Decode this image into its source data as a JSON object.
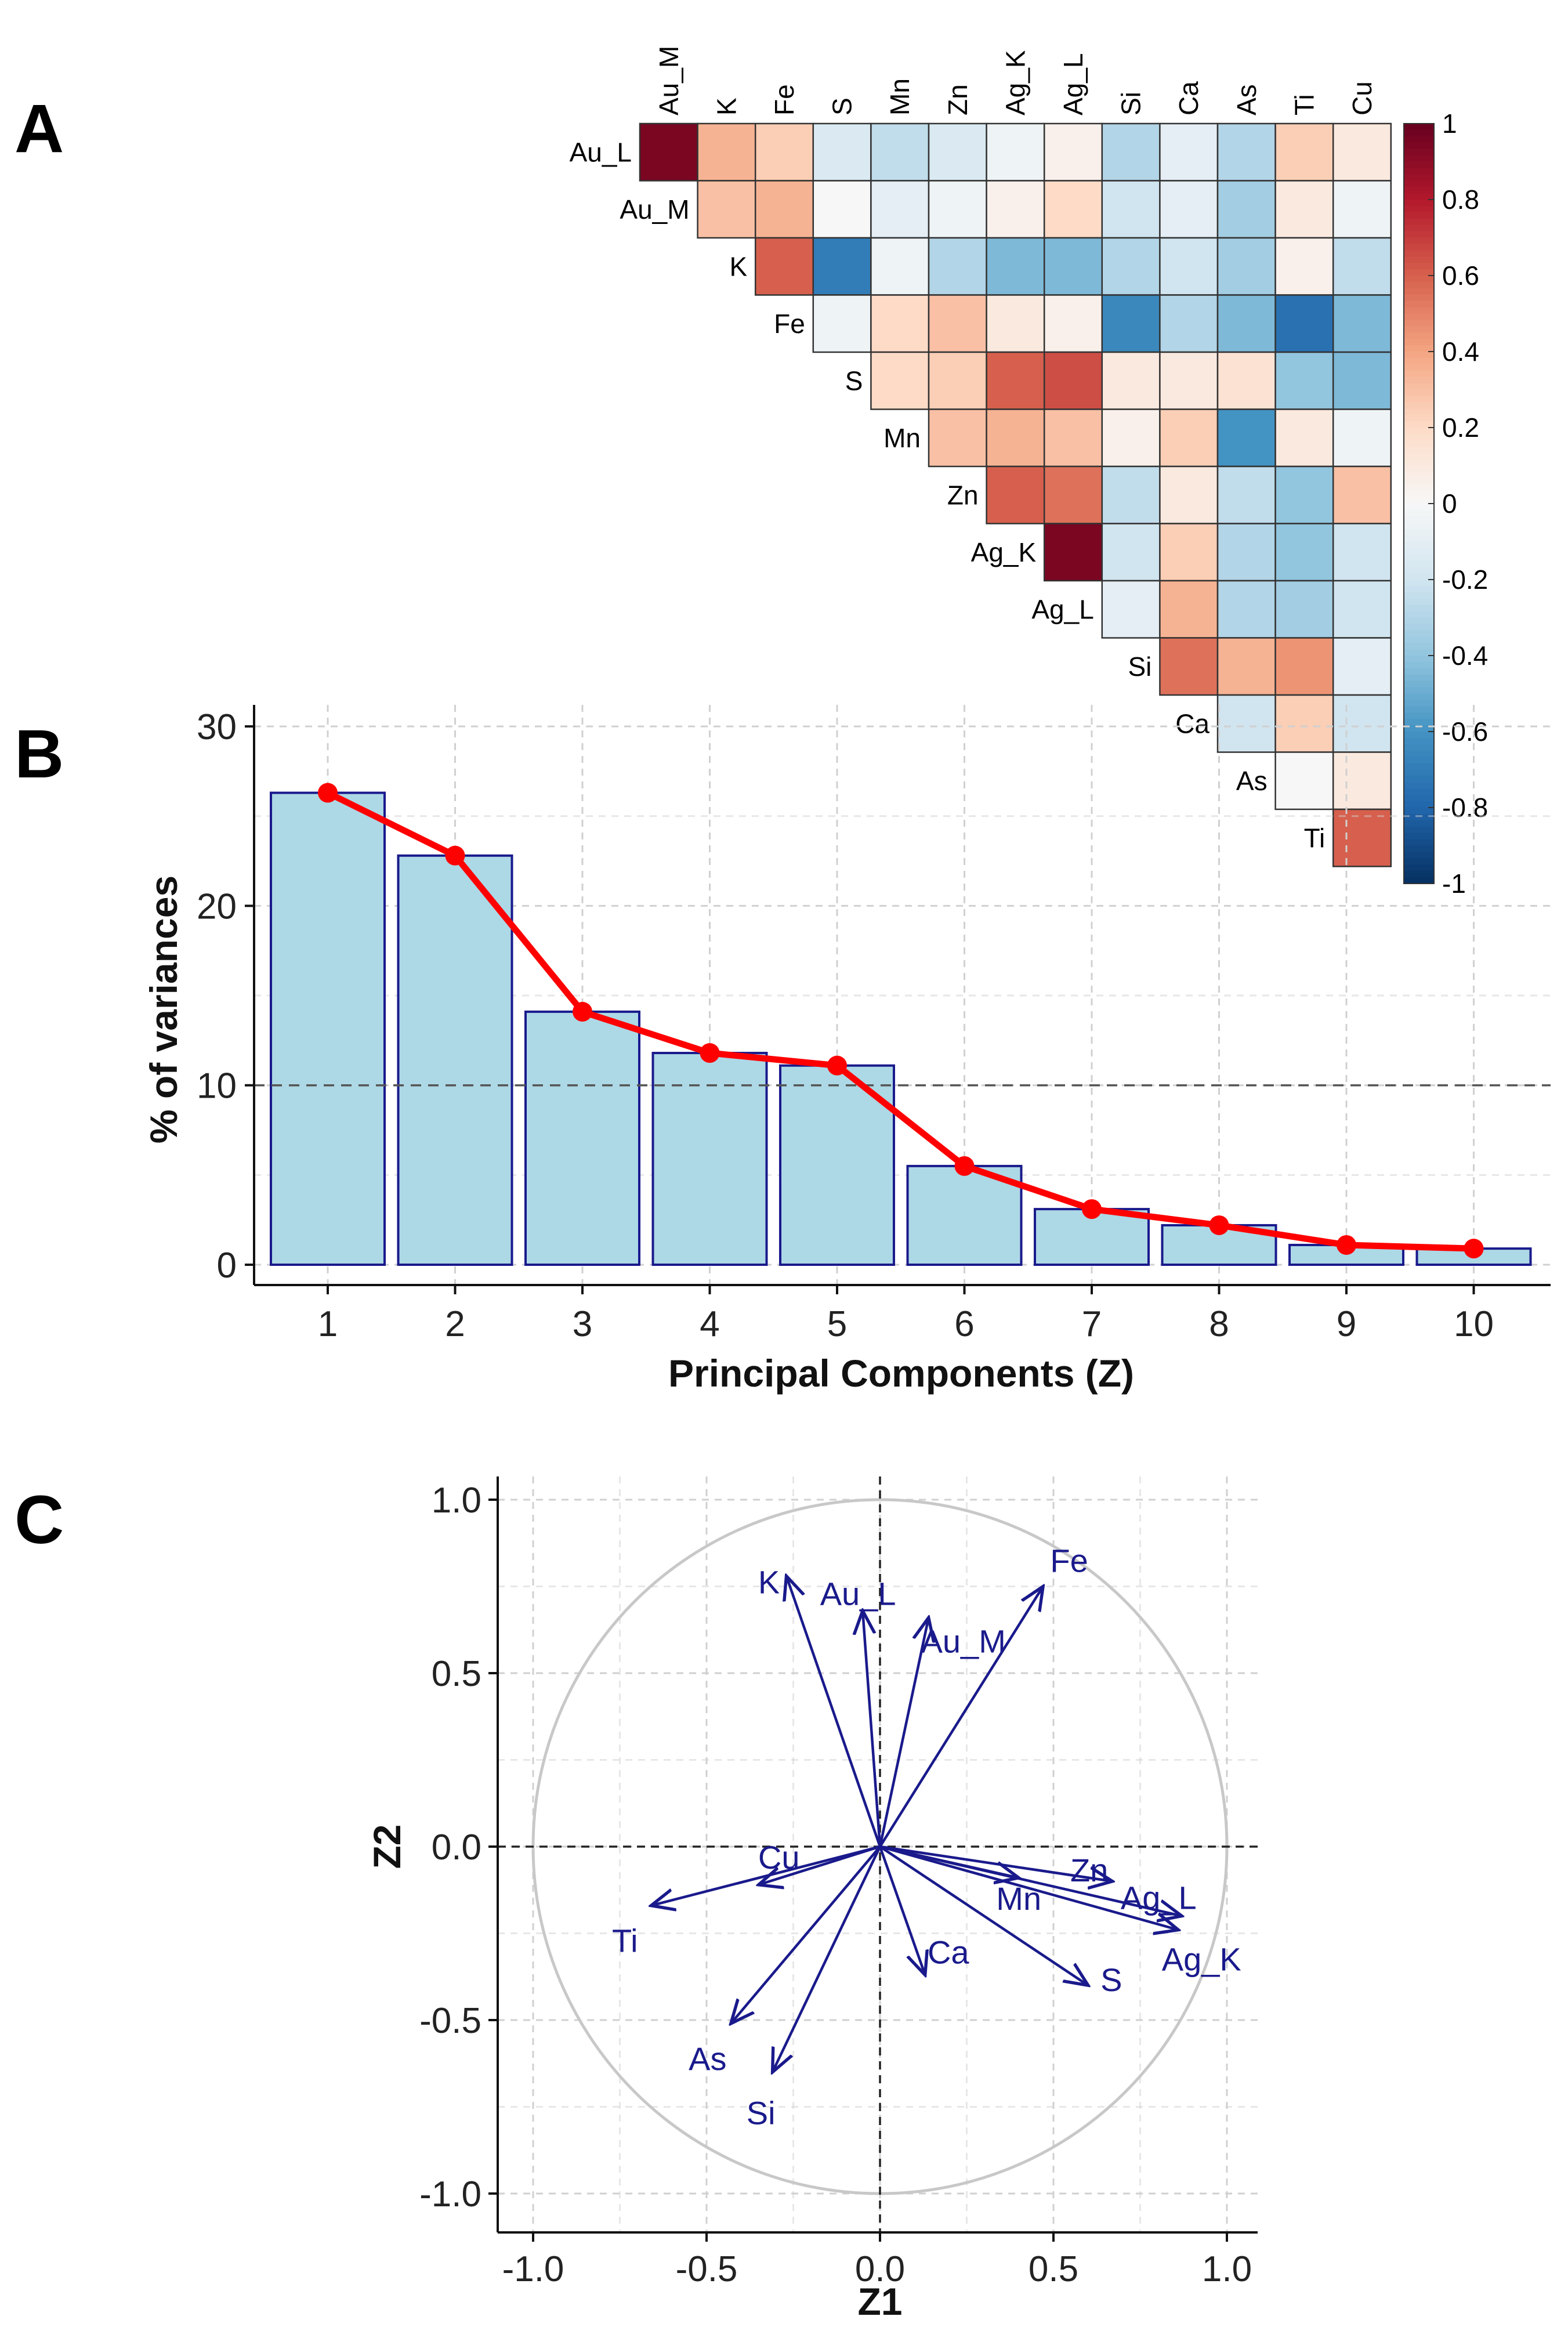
{
  "panels": {
    "a": "A",
    "b": "B",
    "c": "C"
  },
  "chart_data": [
    {
      "type": "heatmap",
      "panel": "A",
      "subtype": "upper-triangular correlation matrix",
      "row_labels": [
        "Au_L",
        "Au_M",
        "K",
        "Fe",
        "S",
        "Mn",
        "Zn",
        "Ag_K",
        "Ag_L",
        "Si",
        "Ca",
        "As",
        "Ti"
      ],
      "col_labels": [
        "Au_M",
        "K",
        "Fe",
        "S",
        "Mn",
        "Zn",
        "Ag_K",
        "Ag_L",
        "Si",
        "Ca",
        "As",
        "Ti",
        "Cu"
      ],
      "values": [
        [
          0.95,
          0.35,
          0.25,
          -0.15,
          -0.25,
          -0.15,
          -0.05,
          0.05,
          -0.3,
          -0.1,
          -0.3,
          0.25,
          0.1
        ],
        [
          null,
          0.3,
          0.35,
          0.0,
          -0.1,
          -0.05,
          0.05,
          0.2,
          -0.2,
          -0.1,
          -0.35,
          0.1,
          -0.05
        ],
        [
          null,
          null,
          0.6,
          -0.7,
          -0.05,
          -0.3,
          -0.45,
          -0.45,
          -0.3,
          -0.2,
          -0.35,
          0.05,
          -0.25
        ],
        [
          null,
          null,
          null,
          -0.05,
          0.2,
          0.3,
          0.1,
          0.05,
          -0.65,
          -0.3,
          -0.45,
          -0.75,
          -0.45
        ],
        [
          null,
          null,
          null,
          null,
          0.2,
          0.25,
          0.6,
          0.65,
          0.1,
          0.1,
          0.15,
          -0.4,
          -0.45
        ],
        [
          null,
          null,
          null,
          null,
          null,
          0.3,
          0.35,
          0.3,
          0.05,
          0.25,
          -0.6,
          0.1,
          -0.05
        ],
        [
          null,
          null,
          null,
          null,
          null,
          null,
          0.6,
          0.55,
          -0.25,
          0.1,
          -0.25,
          -0.4,
          0.3
        ],
        [
          null,
          null,
          null,
          null,
          null,
          null,
          null,
          0.95,
          -0.2,
          0.25,
          -0.3,
          -0.4,
          -0.2
        ],
        [
          null,
          null,
          null,
          null,
          null,
          null,
          null,
          null,
          -0.1,
          0.35,
          -0.3,
          -0.35,
          -0.2
        ],
        [
          null,
          null,
          null,
          null,
          null,
          null,
          null,
          null,
          null,
          0.55,
          0.35,
          0.45,
          -0.1
        ],
        [
          null,
          null,
          null,
          null,
          null,
          null,
          null,
          null,
          null,
          null,
          -0.2,
          0.25,
          -0.2
        ],
        [
          null,
          null,
          null,
          null,
          null,
          null,
          null,
          null,
          null,
          null,
          null,
          0.0,
          0.1
        ],
        [
          null,
          null,
          null,
          null,
          null,
          null,
          null,
          null,
          null,
          null,
          null,
          null,
          0.6
        ]
      ],
      "colorbar": {
        "range": [
          -1,
          1
        ],
        "ticks": [
          "1",
          "0.8",
          "0.6",
          "0.4",
          "0.2",
          "0",
          "-0.2",
          "-0.4",
          "-0.6",
          "-0.8",
          "-1"
        ]
      },
      "colors": {
        "neg": "#053061",
        "mid": "#f7f7f7",
        "pos": "#67001f"
      }
    },
    {
      "type": "bar",
      "panel": "B",
      "categories": [
        "1",
        "2",
        "3",
        "4",
        "5",
        "6",
        "7",
        "8",
        "9",
        "10"
      ],
      "values": [
        26.3,
        22.8,
        14.1,
        11.8,
        11.1,
        5.5,
        3.1,
        2.2,
        1.1,
        0.9
      ],
      "line_overlay": true,
      "reference_line": 10,
      "xlabel": "Principal Components (Z)",
      "ylabel": "% of variances",
      "ylim": [
        0,
        30
      ],
      "yticks": [
        "0",
        "10",
        "20",
        "30"
      ],
      "colors": {
        "bar_fill": "#add8e6",
        "bar_edge": "#1a1a8c",
        "line": "#ff0000"
      }
    },
    {
      "type": "biplot",
      "panel": "C",
      "xlabel": "Z1",
      "ylabel": "Z2",
      "xlim": [
        -1.0,
        1.0
      ],
      "ylim": [
        -1.0,
        1.0
      ],
      "xticks": [
        "-1.0",
        "-0.5",
        "0.0",
        "0.5",
        "1.0"
      ],
      "yticks": [
        "-1.0",
        "-0.5",
        "0.0",
        "0.5",
        "1.0"
      ],
      "vectors": [
        {
          "name": "K",
          "x": -0.27,
          "y": 0.78
        },
        {
          "name": "Au_L",
          "x": -0.05,
          "y": 0.68
        },
        {
          "name": "Au_M",
          "x": 0.14,
          "y": 0.66
        },
        {
          "name": "Fe",
          "x": 0.47,
          "y": 0.75
        },
        {
          "name": "Zn",
          "x": 0.67,
          "y": -0.1
        },
        {
          "name": "Mn",
          "x": 0.4,
          "y": -0.09
        },
        {
          "name": "Ag_L",
          "x": 0.87,
          "y": -0.2
        },
        {
          "name": "Ag_K",
          "x": 0.86,
          "y": -0.24
        },
        {
          "name": "S",
          "x": 0.6,
          "y": -0.4
        },
        {
          "name": "Ca",
          "x": 0.13,
          "y": -0.37
        },
        {
          "name": "Cu",
          "x": -0.35,
          "y": -0.11
        },
        {
          "name": "Ti",
          "x": -0.66,
          "y": -0.17
        },
        {
          "name": "As",
          "x": -0.43,
          "y": -0.51
        },
        {
          "name": "Si",
          "x": -0.31,
          "y": -0.65
        }
      ],
      "colors": {
        "arrow": "#1a1a8c",
        "circle": "#c8c8c8"
      }
    }
  ]
}
